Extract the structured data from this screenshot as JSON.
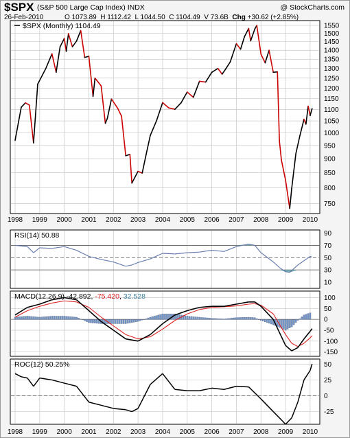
{
  "header": {
    "symbol": "$SPX",
    "description": "(S&P 500 Large Cap Index) INDX",
    "brand": "@ StockCharts.com",
    "date": "26-Feb-2010",
    "open_label": "O",
    "open": "1073.89",
    "high_label": "H",
    "high": "1112.42",
    "low_label": "L",
    "low": "1044.50",
    "close_label": "C",
    "close": "1104.49",
    "volume_label": "V",
    "volume": "73.6B",
    "change_label": "Chg",
    "change": "+30.62 (+2.85%)"
  },
  "colors": {
    "up": "#000000",
    "down": "#cc0000",
    "rsi_line": "#6a7fb0",
    "rsi_fill": "#4f9c9c",
    "macd_signal": "#dd2222",
    "histogram": "#7799cc",
    "grid": "#c8c8c8"
  },
  "chart_data": [
    {
      "type": "line",
      "panel": "price",
      "label": "$SPX (Monthly) 1104.49",
      "x_ticks": [
        "1998",
        "1999",
        "2000",
        "2001",
        "2002",
        "2003",
        "2004",
        "2005",
        "2006",
        "2007",
        "2008",
        "2009",
        "2010"
      ],
      "y_ticks": [
        750,
        800,
        850,
        900,
        950,
        1000,
        1050,
        1100,
        1150,
        1200,
        1250,
        1300,
        1350,
        1400,
        1450,
        1500,
        1550
      ],
      "y_log": true,
      "ylim": [
        720,
        1580
      ],
      "x": [
        1998.0,
        1998.25,
        1998.42,
        1998.58,
        1998.75,
        1998.92,
        1999.25,
        1999.5,
        1999.67,
        1999.83,
        2000.0,
        2000.08,
        2000.17,
        2000.33,
        2000.5,
        2000.67,
        2000.83,
        2001.0,
        2001.17,
        2001.25,
        2001.5,
        2001.67,
        2001.75,
        2001.92,
        2002.17,
        2002.33,
        2002.5,
        2002.67,
        2002.75,
        2003.0,
        2003.17,
        2003.33,
        2003.5,
        2003.75,
        2004.0,
        2004.25,
        2004.5,
        2004.75,
        2005.0,
        2005.25,
        2005.5,
        2005.75,
        2006.0,
        2006.25,
        2006.42,
        2006.58,
        2006.75,
        2007.0,
        2007.17,
        2007.33,
        2007.5,
        2007.58,
        2007.75,
        2007.83,
        2008.0,
        2008.17,
        2008.33,
        2008.5,
        2008.67,
        2008.75,
        2008.83,
        2009.0,
        2009.17,
        2009.25,
        2009.42,
        2009.58,
        2009.75,
        2009.83,
        2009.92,
        2010.0,
        2010.08
      ],
      "values": [
        970,
        1110,
        1130,
        1120,
        960,
        1220,
        1300,
        1380,
        1280,
        1420,
        1469,
        1394,
        1498,
        1420,
        1454,
        1517,
        1360,
        1366,
        1160,
        1250,
        1211,
        1040,
        1060,
        1148,
        1106,
        1070,
        911,
        916,
        815,
        855,
        849,
        916,
        990,
        1050,
        1131,
        1107,
        1101,
        1130,
        1181,
        1156,
        1234,
        1230,
        1280,
        1300,
        1270,
        1300,
        1335,
        1438,
        1406,
        1480,
        1530,
        1455,
        1527,
        1549,
        1378,
        1330,
        1400,
        1280,
        1282,
        968,
        896,
        825,
        735,
        797,
        919,
        987,
        1057,
        1036,
        1115,
        1073,
        1104
      ],
      "last_value": "1104.49"
    },
    {
      "type": "line",
      "panel": "rsi",
      "label": "RSI(14) 50.88",
      "y_ticks": [
        10,
        30,
        50,
        70,
        90
      ],
      "ylim": [
        0,
        95
      ],
      "overbought": 70,
      "oversold": 30,
      "x": [
        1998.0,
        1998.5,
        1998.75,
        1999.0,
        1999.5,
        2000.0,
        2000.5,
        2001.0,
        2001.5,
        2002.0,
        2002.5,
        2002.75,
        2003.0,
        2003.5,
        2004.0,
        2004.5,
        2005.0,
        2005.5,
        2006.0,
        2006.5,
        2007.0,
        2007.5,
        2007.75,
        2008.0,
        2008.5,
        2008.75,
        2009.0,
        2009.17,
        2009.5,
        2009.75,
        2010.0,
        2010.08
      ],
      "values": [
        70,
        68,
        58,
        66,
        65,
        68,
        62,
        52,
        47,
        43,
        36,
        38,
        42,
        48,
        57,
        56,
        58,
        59,
        62,
        60,
        68,
        72,
        70,
        58,
        43,
        34,
        27,
        26,
        38,
        45,
        52,
        50.88
      ],
      "last_value": "50.88"
    },
    {
      "type": "line",
      "panel": "macd",
      "label": "MACD(12,26,9)",
      "params": "(12,26,9)",
      "macd_value": "-42.892",
      "signal_value": "-75.420",
      "hist_value": "32.528",
      "y_ticks": [
        100,
        50,
        0,
        -50,
        -100,
        -150
      ],
      "ylim": [
        -170,
        130
      ],
      "x": [
        1998.0,
        1998.5,
        1999.0,
        1999.5,
        2000.0,
        2000.5,
        2001.0,
        2001.5,
        2002.0,
        2002.5,
        2003.0,
        2003.5,
        2004.0,
        2004.5,
        2005.0,
        2005.5,
        2006.0,
        2006.5,
        2007.0,
        2007.5,
        2007.75,
        2008.0,
        2008.5,
        2009.0,
        2009.25,
        2009.5,
        2009.75,
        2010.0,
        2010.08
      ],
      "series": [
        {
          "name": "MACD",
          "values": [
            20,
            55,
            70,
            90,
            100,
            90,
            40,
            -10,
            -50,
            -90,
            -100,
            -70,
            -20,
            20,
            40,
            55,
            60,
            60,
            70,
            80,
            80,
            60,
            0,
            -120,
            -145,
            -130,
            -90,
            -55,
            -42.892
          ]
        },
        {
          "name": "Signal",
          "values": [
            10,
            40,
            60,
            75,
            85,
            80,
            55,
            10,
            -30,
            -70,
            -90,
            -80,
            -45,
            -5,
            25,
            45,
            55,
            58,
            62,
            70,
            72,
            65,
            25,
            -70,
            -110,
            -125,
            -110,
            -85,
            -75.42
          ]
        },
        {
          "name": "Histogram",
          "values": [
            10,
            15,
            10,
            15,
            15,
            10,
            -15,
            -20,
            -20,
            -20,
            -10,
            10,
            25,
            25,
            15,
            10,
            5,
            2,
            8,
            10,
            8,
            -5,
            -25,
            -50,
            -35,
            -5,
            20,
            30,
            32.528
          ]
        }
      ]
    },
    {
      "type": "line",
      "panel": "roc",
      "label": "ROC(12) 50.25%",
      "y_ticks": [
        50,
        25,
        0,
        -25
      ],
      "ylim": [
        -45,
        58
      ],
      "x": [
        1998.0,
        1998.25,
        1998.5,
        1998.75,
        1999.0,
        1999.5,
        2000.0,
        2000.5,
        2001.0,
        2001.5,
        2002.0,
        2002.5,
        2002.75,
        2003.0,
        2003.5,
        2004.0,
        2004.5,
        2005.0,
        2005.5,
        2006.0,
        2006.5,
        2007.0,
        2007.5,
        2008.0,
        2008.5,
        2008.83,
        2009.0,
        2009.25,
        2009.5,
        2009.75,
        2010.0,
        2010.08
      ],
      "values": [
        35,
        30,
        28,
        15,
        28,
        25,
        20,
        15,
        -10,
        -15,
        -20,
        -22,
        -25,
        -20,
        18,
        35,
        10,
        8,
        8,
        12,
        10,
        15,
        14,
        -5,
        -25,
        -38,
        -45,
        -35,
        -10,
        25,
        40,
        50.25
      ],
      "last_value": "50.25%"
    }
  ]
}
